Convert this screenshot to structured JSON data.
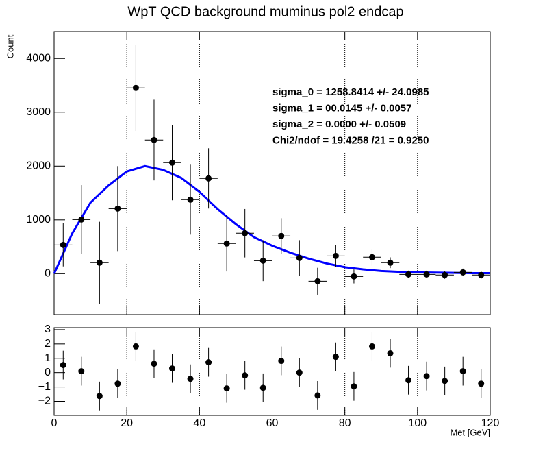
{
  "chart_data": [
    {
      "type": "errorbar",
      "title": "WpT QCD background muminus pol2 endcap",
      "y_label": "Count",
      "x": [
        2.5,
        7.5,
        12.5,
        17.5,
        22.5,
        27.5,
        32.5,
        37.5,
        42.5,
        47.5,
        52.5,
        57.5,
        62.5,
        67.5,
        72.5,
        77.5,
        82.5,
        87.5,
        92.5,
        97.5,
        102.5,
        107.5,
        112.5,
        117.5
      ],
      "xerr": [
        2.5,
        2.5,
        2.5,
        2.5,
        2.5,
        2.5,
        2.5,
        2.5,
        2.5,
        2.5,
        2.5,
        2.5,
        2.5,
        2.5,
        2.5,
        2.5,
        2.5,
        2.5,
        2.5,
        2.5,
        2.5,
        2.5,
        2.5,
        2.5
      ],
      "values": [
        535,
        1006,
        204,
        1210,
        3452,
        2484,
        2064,
        1376,
        1771,
        561,
        752,
        242,
        701,
        293,
        -140,
        331,
        -51,
        306,
        204,
        -13,
        -13,
        -25,
        25,
        -25
      ],
      "errors": [
        400,
        640,
        760,
        790,
        800,
        750,
        700,
        650,
        560,
        520,
        450,
        380,
        330,
        330,
        250,
        200,
        130,
        160,
        100,
        70,
        70,
        70,
        70,
        70
      ],
      "color": "#000000",
      "fit": {
        "color": "#0000ff",
        "x": [
          0,
          5,
          10,
          15,
          20,
          25,
          30,
          35,
          40,
          45,
          50,
          55,
          60,
          65,
          70,
          75,
          80,
          85,
          90,
          95,
          100,
          105,
          110,
          115,
          120
        ],
        "values": [
          0,
          750,
          1320,
          1640,
          1900,
          2000,
          1930,
          1780,
          1520,
          1200,
          920,
          680,
          520,
          390,
          280,
          190,
          120,
          80,
          50,
          35,
          25,
          20,
          15,
          10,
          10
        ]
      },
      "annotations": [
        "sigma_0 = 1258.8414  +/- 24.0985",
        "sigma_1 = 00.0145  +/- 0.0057",
        "sigma_2 = 0.0000  +/- 0.0509",
        "Chi2/ndof = 19.4258 /21 = 0.9250"
      ],
      "xlim": [
        0,
        120
      ],
      "ylim": [
        -760,
        4500
      ],
      "yticks": [
        0,
        1000,
        2000,
        3000,
        4000
      ],
      "grid": true
    },
    {
      "type": "errorbar",
      "x_label": "Met [GeV]",
      "x": [
        2.5,
        7.5,
        12.5,
        17.5,
        22.5,
        27.5,
        32.5,
        37.5,
        42.5,
        47.5,
        52.5,
        57.5,
        62.5,
        67.5,
        72.5,
        77.5,
        82.5,
        87.5,
        92.5,
        97.5,
        102.5,
        107.5,
        112.5,
        117.5
      ],
      "values": [
        0.53,
        0.1,
        -1.63,
        -0.77,
        1.83,
        0.62,
        0.29,
        -0.43,
        0.72,
        -1.1,
        -0.19,
        -1.06,
        0.82,
        0.0,
        -1.59,
        1.1,
        -0.96,
        1.83,
        1.35,
        -0.53,
        -0.24,
        -0.58,
        0.1,
        -0.77
      ],
      "errors": [
        1,
        1,
        1,
        1,
        1,
        1,
        1,
        1,
        1,
        1,
        1,
        1,
        1,
        1,
        1,
        1,
        1,
        1,
        1,
        1,
        1,
        1,
        1,
        1
      ],
      "color": "#000000",
      "xlim": [
        0,
        120
      ],
      "xticks": [
        0,
        20,
        40,
        60,
        80,
        100,
        120
      ],
      "ylim": [
        -2.98,
        3.14
      ],
      "yticks": [
        {
          "value": -2,
          "label": "−2"
        },
        {
          "value": -1,
          "label": "−1"
        },
        0,
        1,
        2,
        3
      ],
      "grid": true
    }
  ]
}
